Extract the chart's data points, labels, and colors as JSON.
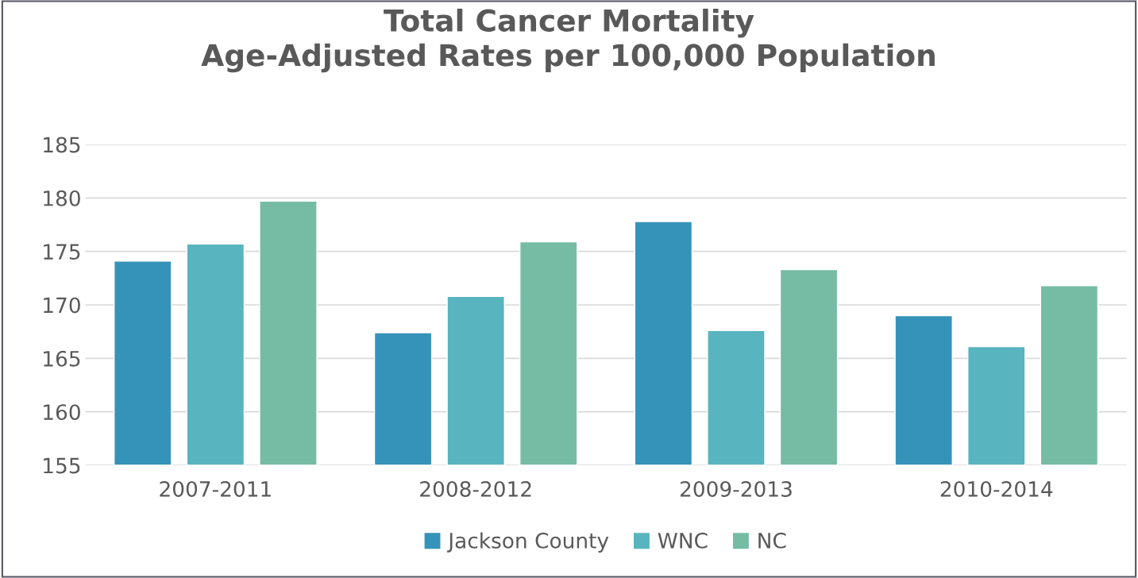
{
  "chart_data": {
    "type": "bar",
    "title": "Total Cancer Mortality\nAge-Adjusted Rates per 100,000 Population",
    "categories": [
      "2007-2011",
      "2008-2012",
      "2009-2013",
      "2010-2014"
    ],
    "series": [
      {
        "name": "Jackson County",
        "color": "#3593ba",
        "values": [
          174.1,
          167.4,
          177.8,
          169.0
        ]
      },
      {
        "name": "WNC",
        "color": "#58b4bf",
        "values": [
          175.7,
          170.8,
          167.6,
          166.1
        ]
      },
      {
        "name": "NC",
        "color": "#76bca5",
        "values": [
          179.7,
          175.9,
          173.3,
          171.8
        ]
      }
    ],
    "ylim": [
      155,
      185
    ],
    "yticks": [
      155,
      160,
      165,
      170,
      175,
      180,
      185
    ],
    "grid": "y",
    "legend": "bottom"
  }
}
